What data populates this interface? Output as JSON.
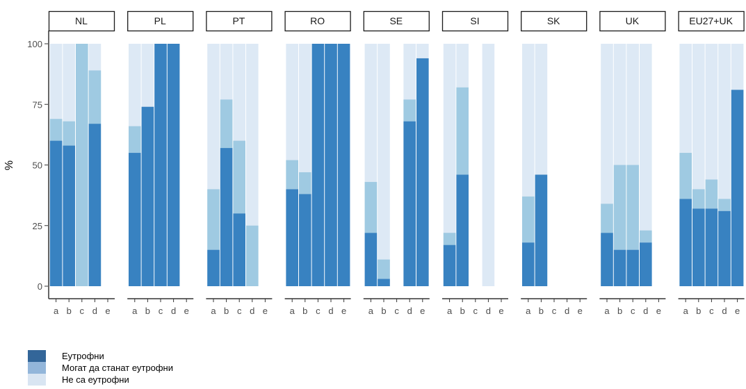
{
  "chart_data": {
    "type": "bar",
    "stacked": true,
    "faceted": true,
    "ylabel": "%",
    "ylim": [
      0,
      100
    ],
    "yticks": [
      0,
      25,
      50,
      75,
      100
    ],
    "categories": [
      "a",
      "b",
      "c",
      "d",
      "e"
    ],
    "colors": {
      "eutrophic": "#3882c1",
      "may_become": "#9fcae2",
      "not_eutrophic": "#dde9f5",
      "legend_eutrophic": "#336699",
      "legend_may_become": "#93b6da",
      "legend_not_eutrophic": "#d9e5f2"
    },
    "legend": [
      {
        "key": "eutrophic",
        "label": "Еутрофни"
      },
      {
        "key": "may_become",
        "label": "Могат да станат еутрофни"
      },
      {
        "key": "not_eutrophic",
        "label": "Не са еутрофни"
      }
    ],
    "panels": [
      {
        "name": "NL",
        "bars": [
          {
            "c": "a",
            "e": 60,
            "m": 9,
            "t": 100
          },
          {
            "c": "b",
            "e": 58,
            "m": 10,
            "t": 100
          },
          {
            "c": "c",
            "e": 0,
            "m": 100,
            "t": 100
          },
          {
            "c": "d",
            "e": 67,
            "m": 22,
            "t": 100
          }
        ]
      },
      {
        "name": "PL",
        "bars": [
          {
            "c": "a",
            "e": 55,
            "m": 11,
            "t": 100
          },
          {
            "c": "b",
            "e": 74,
            "m": 0,
            "t": 100
          },
          {
            "c": "c",
            "e": 100,
            "m": 0,
            "t": 100
          },
          {
            "c": "d",
            "e": 100,
            "m": 0,
            "t": 100
          }
        ]
      },
      {
        "name": "PT",
        "bars": [
          {
            "c": "a",
            "e": 15,
            "m": 25,
            "t": 100
          },
          {
            "c": "b",
            "e": 57,
            "m": 20,
            "t": 100
          },
          {
            "c": "c",
            "e": 30,
            "m": 30,
            "t": 100
          },
          {
            "c": "d",
            "e": 0,
            "m": 25,
            "t": 100
          }
        ]
      },
      {
        "name": "RO",
        "bars": [
          {
            "c": "a",
            "e": 40,
            "m": 12,
            "t": 100
          },
          {
            "c": "b",
            "e": 38,
            "m": 9,
            "t": 100
          },
          {
            "c": "c",
            "e": 100,
            "m": 0,
            "t": 100
          },
          {
            "c": "d",
            "e": 100,
            "m": 0,
            "t": 100
          },
          {
            "c": "e",
            "e": 100,
            "m": 0,
            "t": 100
          }
        ]
      },
      {
        "name": "SE",
        "bars": [
          {
            "c": "a",
            "e": 22,
            "m": 21,
            "t": 100
          },
          {
            "c": "b",
            "e": 3,
            "m": 8,
            "t": 100
          },
          {
            "c": "d",
            "e": 68,
            "m": 9,
            "t": 100
          },
          {
            "c": "e",
            "e": 94,
            "m": 0,
            "t": 100
          }
        ]
      },
      {
        "name": "SI",
        "bars": [
          {
            "c": "a",
            "e": 17,
            "m": 5,
            "t": 100
          },
          {
            "c": "b",
            "e": 46,
            "m": 36,
            "t": 100
          },
          {
            "c": "d",
            "e": 0,
            "m": 0,
            "t": 100
          }
        ]
      },
      {
        "name": "SK",
        "bars": [
          {
            "c": "a",
            "e": 18,
            "m": 19,
            "t": 100
          },
          {
            "c": "b",
            "e": 46,
            "m": 0,
            "t": 100
          }
        ]
      },
      {
        "name": "UK",
        "bars": [
          {
            "c": "a",
            "e": 22,
            "m": 12,
            "t": 100
          },
          {
            "c": "b",
            "e": 15,
            "m": 35,
            "t": 100
          },
          {
            "c": "c",
            "e": 15,
            "m": 35,
            "t": 100
          },
          {
            "c": "d",
            "e": 18,
            "m": 5,
            "t": 100
          }
        ]
      },
      {
        "name": "EU27+UK",
        "bars": [
          {
            "c": "a",
            "e": 36,
            "m": 19,
            "t": 100
          },
          {
            "c": "b",
            "e": 32,
            "m": 8,
            "t": 100
          },
          {
            "c": "c",
            "e": 32,
            "m": 12,
            "t": 100
          },
          {
            "c": "d",
            "e": 31,
            "m": 5,
            "t": 100
          },
          {
            "c": "e",
            "e": 81,
            "m": 0,
            "t": 100
          }
        ]
      }
    ]
  }
}
